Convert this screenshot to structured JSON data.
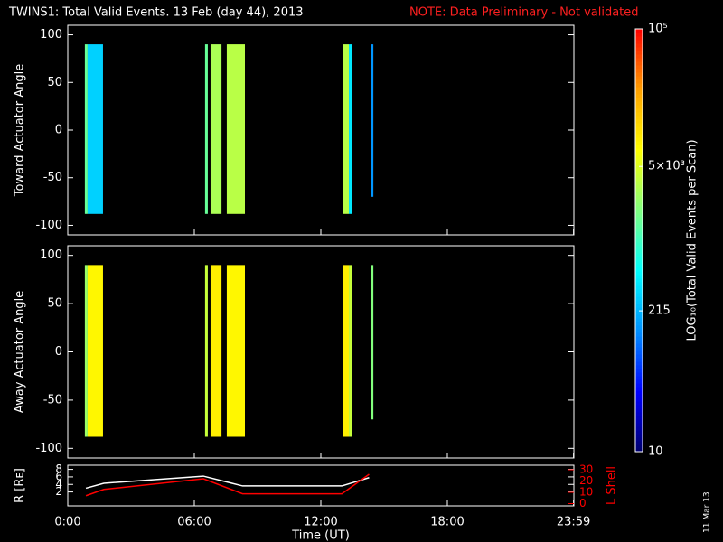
{
  "figure": {
    "title": "TWINS1: Total Valid Events. 13 Feb (day  44), 2013",
    "note": "NOTE: Data Preliminary - Not validated",
    "date": "11 Mar 13",
    "colorbar": {
      "label": "LOG₁₀(Total Valid Events per Scan)",
      "lim": [
        10,
        100000
      ],
      "log": true,
      "ticks": [
        10,
        215,
        {
          "value": 5000,
          "label": "5×10³"
        },
        {
          "value": 100000,
          "label": "10⁵"
        }
      ],
      "colormap": [
        "#00006e",
        "#0000ff",
        "#0090ff",
        "#00ffff",
        "#80ff80",
        "#ffff00",
        "#ffa000",
        "#ff0000"
      ]
    }
  },
  "chart_data": [
    {
      "type": "heatmap",
      "ylabel": "Toward Actuator Angle",
      "xlim": [
        0,
        24
      ],
      "ylim": [
        -110,
        110
      ],
      "yticks": [
        -100,
        -50,
        0,
        50,
        100
      ],
      "bands": [
        {
          "x": [
            0.81,
            0.94
          ],
          "y": [
            -88,
            90
          ],
          "value": 1500
        },
        {
          "x": [
            0.94,
            1.67
          ],
          "y": [
            -88,
            90
          ],
          "value": 300
        },
        {
          "x": [
            6.51,
            6.64
          ],
          "y": [
            -88,
            90
          ],
          "value": 1500
        },
        {
          "x": [
            6.77,
            7.29
          ],
          "y": [
            -88,
            90
          ],
          "value": 3000
        },
        {
          "x": [
            7.54,
            8.4
          ],
          "y": [
            -88,
            90
          ],
          "value": 3500
        },
        {
          "x": [
            13.03,
            13.33
          ],
          "y": [
            -88,
            90
          ],
          "value": 3500
        },
        {
          "x": [
            13.33,
            13.46
          ],
          "y": [
            -88,
            90
          ],
          "value": 400
        },
        {
          "x": [
            14.4,
            14.49
          ],
          "y": [
            -70,
            90
          ],
          "value": 150
        }
      ]
    },
    {
      "type": "heatmap",
      "ylabel": "Away Actuator Angle",
      "xlim": [
        0,
        24
      ],
      "ylim": [
        -110,
        110
      ],
      "yticks": [
        -100,
        -50,
        0,
        50,
        100
      ],
      "bands": [
        {
          "x": [
            0.81,
            0.94
          ],
          "y": [
            -88,
            90
          ],
          "value": 2500
        },
        {
          "x": [
            0.94,
            1.67
          ],
          "y": [
            -88,
            90
          ],
          "value": 8000
        },
        {
          "x": [
            6.51,
            6.64
          ],
          "y": [
            -88,
            90
          ],
          "value": 4000
        },
        {
          "x": [
            6.77,
            7.29
          ],
          "y": [
            -88,
            90
          ],
          "value": 9000
        },
        {
          "x": [
            7.54,
            8.4
          ],
          "y": [
            -88,
            90
          ],
          "value": 8000
        },
        {
          "x": [
            13.03,
            13.33
          ],
          "y": [
            -88,
            90
          ],
          "value": 9000
        },
        {
          "x": [
            13.33,
            13.46
          ],
          "y": [
            -88,
            90
          ],
          "value": 4000
        },
        {
          "x": [
            14.4,
            14.49
          ],
          "y": [
            -70,
            90
          ],
          "value": 2000
        }
      ]
    },
    {
      "type": "line",
      "ylabel": "R [Rᴇ]",
      "y2label": "L Shell",
      "xlabel": "Time (UT)",
      "xlim": [
        0,
        24
      ],
      "ylim": [
        -1.7,
        9.1
      ],
      "y2lim": [
        -2,
        34
      ],
      "xticks": [
        {
          "value": 0,
          "label": "0:00"
        },
        {
          "value": 6,
          "label": "06:00"
        },
        {
          "value": 12,
          "label": "12:00"
        },
        {
          "value": 18,
          "label": "18:00"
        },
        {
          "value": 23.983,
          "label": "23:59"
        }
      ],
      "yticks": [
        2,
        4,
        6,
        8
      ],
      "y2ticks": [
        0,
        10,
        20,
        30
      ],
      "x": [
        0.86,
        1.71,
        6.43,
        8.29,
        13.0,
        14.29
      ],
      "series": [
        {
          "color": "#ffffff",
          "values": [
            3.0,
            4.3,
            6.2,
            3.6,
            3.6,
            5.8
          ]
        },
        {
          "color": "#ff0000",
          "axis": "y2",
          "values": [
            7,
            12.6,
            22,
            8.7,
            8.7,
            26
          ]
        }
      ]
    }
  ]
}
